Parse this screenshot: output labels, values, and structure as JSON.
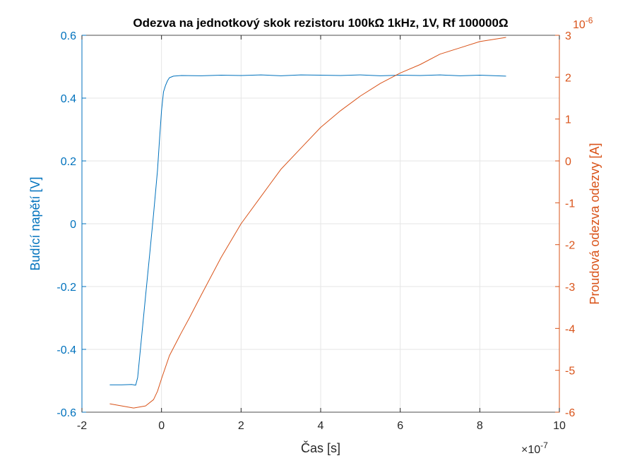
{
  "chart_data": {
    "type": "line",
    "title": "Odezva na jednotkový skok rezistoru 100kΩ 1kHz, 1V, Rf 100000Ω",
    "xlabel": "Čas [s]",
    "x_exponent": "×10",
    "x_exponent_power": "-7",
    "y_left_label": "Budící napětí [V]",
    "y_right_label": "Proudová odezva odezvy [A]",
    "y_right_exponent": "10",
    "y_right_exponent_power": "-6",
    "x_scale": 1e-07,
    "y_right_scale": 1e-06,
    "xlim": [
      -2e-07,
      1e-06
    ],
    "ylim_left": [
      -0.6,
      0.6
    ],
    "ylim_right": [
      -6e-06,
      3e-06
    ],
    "x_ticks": [
      -2,
      0,
      2,
      4,
      6,
      8,
      10
    ],
    "x_tick_labels": [
      "-2",
      "0",
      "2",
      "4",
      "6",
      "8",
      "10"
    ],
    "y_left_ticks": [
      -0.6,
      -0.4,
      -0.2,
      0,
      0.2,
      0.4,
      0.6
    ],
    "y_left_tick_labels": [
      "-0.6",
      "-0.4",
      "-0.2",
      "0",
      "0.2",
      "0.4",
      "0.6"
    ],
    "y_right_ticks": [
      -6,
      -5,
      -4,
      -3,
      -2,
      -1,
      0,
      1,
      2,
      3
    ],
    "y_right_tick_labels": [
      "-6",
      "-5",
      "-4",
      "-3",
      "-2",
      "-1",
      "0",
      "1",
      "2",
      "3"
    ],
    "grid": true,
    "colors": {
      "left": "#0072BD",
      "right": "#D95319",
      "grid": "#e6e6e6",
      "axis": "#262626"
    },
    "series": [
      {
        "axis": "left",
        "color": "#0072BD",
        "x": [
          -1.3e-07,
          -1e-07,
          -7.5e-08,
          -6.5e-08,
          -6e-08,
          -5e-08,
          -4e-08,
          -3e-08,
          -2e-08,
          -1e-08,
          -5e-09,
          0,
          5e-09,
          1e-08,
          1.5e-08,
          2e-08,
          3e-08,
          5e-08,
          1e-07,
          1.5e-07,
          2e-07,
          2.5e-07,
          3e-07,
          3.5e-07,
          4e-07,
          4.5e-07,
          5e-07,
          5.5e-07,
          6e-07,
          6.5e-07,
          7e-07,
          7.5e-07,
          8e-07,
          8.66e-07
        ],
        "y": [
          -0.513,
          -0.513,
          -0.512,
          -0.514,
          -0.49,
          -0.36,
          -0.23,
          -0.1,
          0.03,
          0.17,
          0.27,
          0.36,
          0.42,
          0.44,
          0.455,
          0.465,
          0.47,
          0.472,
          0.471,
          0.473,
          0.472,
          0.474,
          0.471,
          0.474,
          0.473,
          0.472,
          0.474,
          0.471,
          0.473,
          0.472,
          0.474,
          0.471,
          0.473,
          0.47
        ]
      },
      {
        "axis": "right",
        "color": "#D95319",
        "x": [
          -1.3e-07,
          -1e-07,
          -7e-08,
          -4e-08,
          -2e-08,
          -1e-08,
          0,
          2e-08,
          5e-08,
          7e-08,
          1e-07,
          1.5e-07,
          2e-07,
          2.5e-07,
          3e-07,
          3.5e-07,
          4e-07,
          4.5e-07,
          5e-07,
          5.5e-07,
          6e-07,
          6.5e-07,
          7e-07,
          7.5e-07,
          8e-07,
          8.66e-07
        ],
        "y": [
          -5.8e-06,
          -5.85e-06,
          -5.9e-06,
          -5.85e-06,
          -5.7e-06,
          -5.5e-06,
          -5.2e-06,
          -4.65e-06,
          -4.1e-06,
          -3.75e-06,
          -3.2e-06,
          -2.3e-06,
          -1.5e-06,
          -8.5e-07,
          -2e-07,
          3e-07,
          8e-07,
          1.2e-06,
          1.55e-06,
          1.85e-06,
          2.1e-06,
          2.3e-06,
          2.55e-06,
          2.7e-06,
          2.85e-06,
          2.95e-06
        ]
      }
    ]
  }
}
